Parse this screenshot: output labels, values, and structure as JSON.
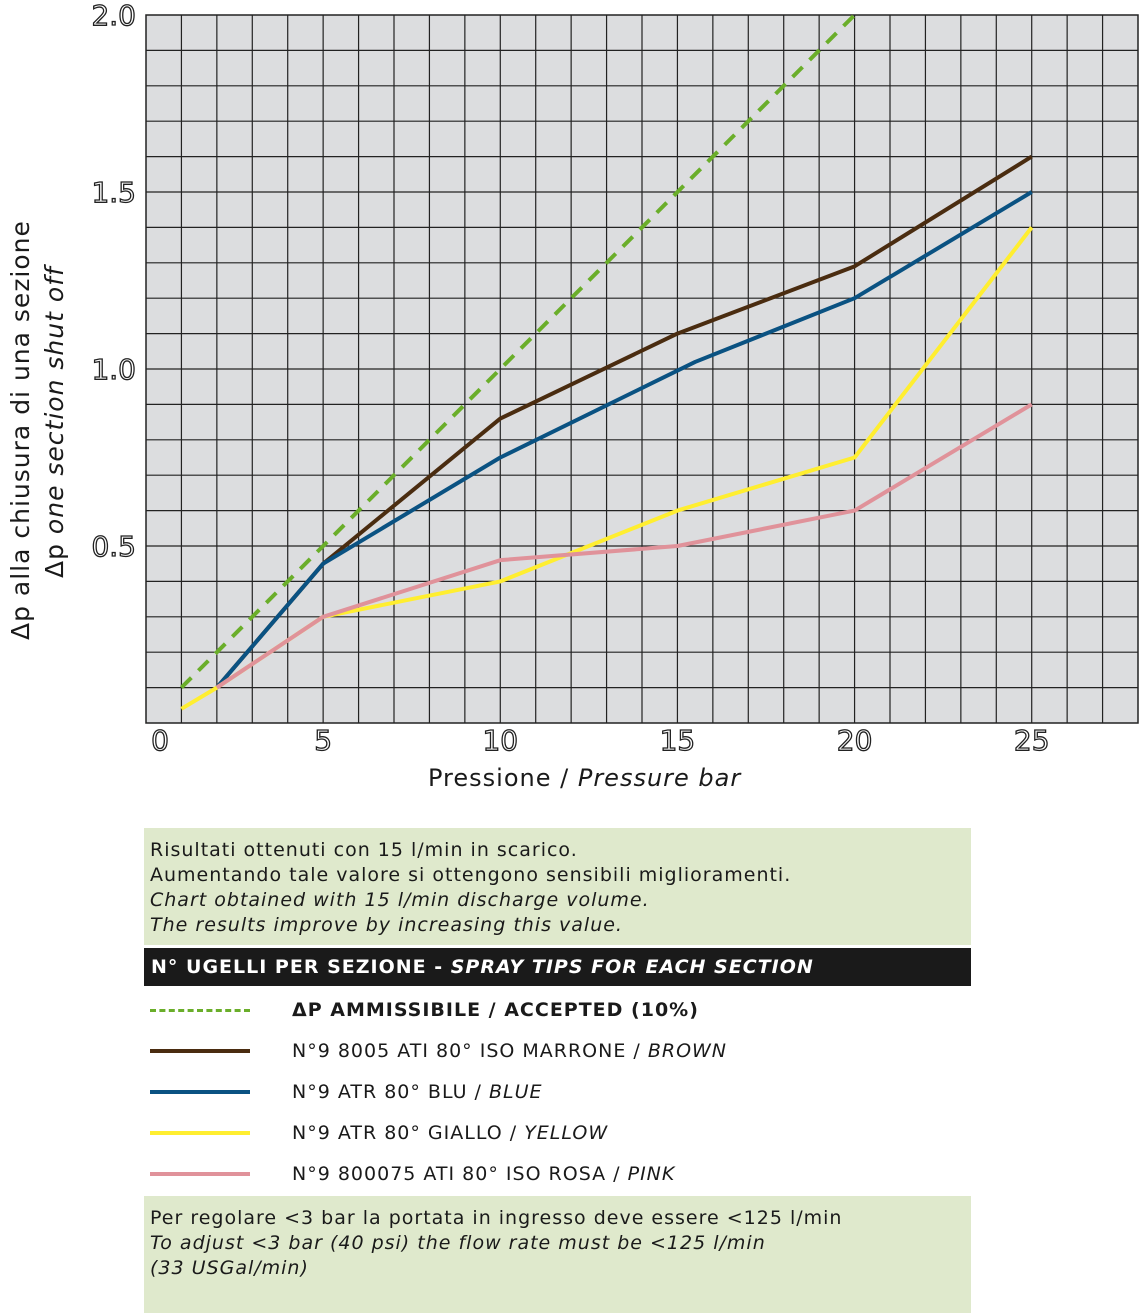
{
  "chart_data": {
    "type": "line",
    "xlabel_it": "Pressione",
    "xlabel_sep": " / ",
    "xlabel_en": "Pressure bar",
    "ylabel_it": "Δp alla chiusura di una sezione",
    "ylabel_en_prefix": "Δp",
    "ylabel_en": "one section shut off",
    "xlim": [
      0,
      28
    ],
    "ylim": [
      0,
      2.0
    ],
    "xticks": [
      "0",
      "5",
      "10",
      "15",
      "20",
      "25"
    ],
    "yticks": [
      "0.5",
      "1.0",
      "1.5",
      "2.0"
    ],
    "grid": true,
    "series": [
      {
        "name": "ΔP AMMISSIBILE / ACCEPTED (10%)",
        "color": "#6aae2a",
        "dashed": true,
        "x": [
          1,
          20
        ],
        "y": [
          0.1,
          2.0
        ]
      },
      {
        "name": "N°9 8005 ATI 80° ISO MARRONE / BROWN",
        "color": "#4a2c10",
        "dashed": false,
        "x": [
          2,
          5,
          10,
          15,
          20,
          25
        ],
        "y": [
          0.1,
          0.45,
          0.86,
          1.1,
          1.29,
          1.6
        ]
      },
      {
        "name": "N°9 ATR 80° BLU / BLUE",
        "color": "#0a5282",
        "dashed": false,
        "x": [
          2,
          5,
          10,
          15.5,
          20,
          25
        ],
        "y": [
          0.1,
          0.45,
          0.75,
          1.02,
          1.2,
          1.5
        ]
      },
      {
        "name": "N°9 ATR 80° GIALLO / YELLOW",
        "color": "#ffee30",
        "dashed": false,
        "x": [
          1,
          2,
          5,
          10,
          15,
          20,
          25
        ],
        "y": [
          0.04,
          0.1,
          0.3,
          0.4,
          0.6,
          0.75,
          1.4
        ]
      },
      {
        "name": "N°9 800075 ATI 80° ISO ROSA / PINK",
        "color": "#e0929a",
        "dashed": false,
        "x": [
          2,
          5,
          10,
          15,
          20,
          25
        ],
        "y": [
          0.1,
          0.3,
          0.46,
          0.5,
          0.6,
          0.9
        ]
      }
    ]
  },
  "note1": {
    "l1": "Risultati ottenuti con 15 l/min in scarico.",
    "l2": "Aumentando tale valore si ottengono sensibili miglioramenti.",
    "l3": "Chart obtained with 15 l/min discharge volume.",
    "l4": "The results improve by increasing this value."
  },
  "legend": {
    "header_it": "N° UGELLI PER SEZIONE - ",
    "header_en": "SPRAY TIPS FOR EACH SECTION",
    "items": [
      {
        "it": "ΔP AMMISSIBILE / ACCEPTED (10%)",
        "en": ""
      },
      {
        "it": "N°9 8005 ATI 80° ISO MARRONE / ",
        "en": "BROWN"
      },
      {
        "it": "N°9 ATR 80° BLU / ",
        "en": "BLUE"
      },
      {
        "it": "N°9 ATR 80° GIALLO / ",
        "en": "YELLOW"
      },
      {
        "it": "N°9 800075 ATI 80° ISO ROSA / ",
        "en": "PINK"
      }
    ]
  },
  "note2": {
    "l1": "Per regolare <3 bar la portata in ingresso deve essere <125 l/min",
    "l2": "To adjust <3 bar (40 psi) the flow rate must be <125 l/min",
    "l3": "(33 USGal/min)"
  }
}
